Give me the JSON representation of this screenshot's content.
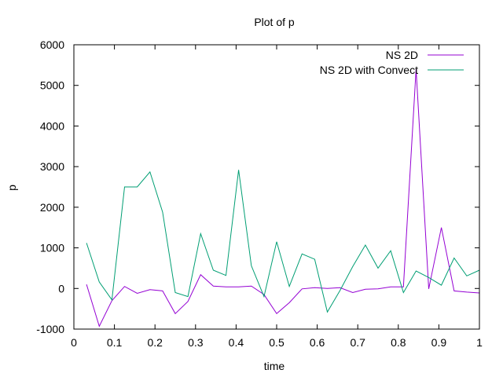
{
  "chart_data": {
    "type": "line",
    "title": "Plot of p",
    "xlabel": "time",
    "ylabel": "p",
    "xlim": [
      0,
      1
    ],
    "ylim": [
      -1000,
      6000
    ],
    "xticks": [
      "0",
      "0.1",
      "0.2",
      "0.3",
      "0.4",
      "0.5",
      "0.6",
      "0.7",
      "0.8",
      "0.9",
      "1"
    ],
    "yticks": [
      "-1000",
      "0",
      "1000",
      "2000",
      "3000",
      "4000",
      "5000",
      "6000"
    ],
    "grid": false,
    "legend": "top-right",
    "x": [
      0.03125,
      0.0625,
      0.09375,
      0.125,
      0.15625,
      0.1875,
      0.21875,
      0.25,
      0.28125,
      0.3125,
      0.34375,
      0.375,
      0.40625,
      0.4375,
      0.46875,
      0.5,
      0.53125,
      0.5625,
      0.59375,
      0.625,
      0.65625,
      0.6875,
      0.71875,
      0.75,
      0.78125,
      0.8125,
      0.84375,
      0.875,
      0.90625,
      0.9375,
      0.96875,
      1.0
    ],
    "series": [
      {
        "name": "NS 2D",
        "color": "#9400d3",
        "values": [
          100,
          -930,
          -300,
          50,
          -120,
          -30,
          -60,
          -620,
          -320,
          340,
          60,
          40,
          40,
          60,
          -150,
          -620,
          -350,
          -10,
          20,
          0,
          20,
          -100,
          -20,
          -10,
          40,
          40,
          5400,
          -10,
          1500,
          -60,
          -90,
          -110
        ]
      },
      {
        "name": "NS 2D with Convect",
        "color": "#009e73",
        "values": [
          1120,
          160,
          -280,
          2500,
          2500,
          2870,
          1880,
          -100,
          -200,
          1350,
          450,
          320,
          2920,
          560,
          -200,
          1150,
          50,
          850,
          720,
          -580,
          -50,
          540,
          1070,
          500,
          930,
          -100,
          430,
          270,
          80,
          750,
          310,
          450
        ]
      }
    ]
  }
}
